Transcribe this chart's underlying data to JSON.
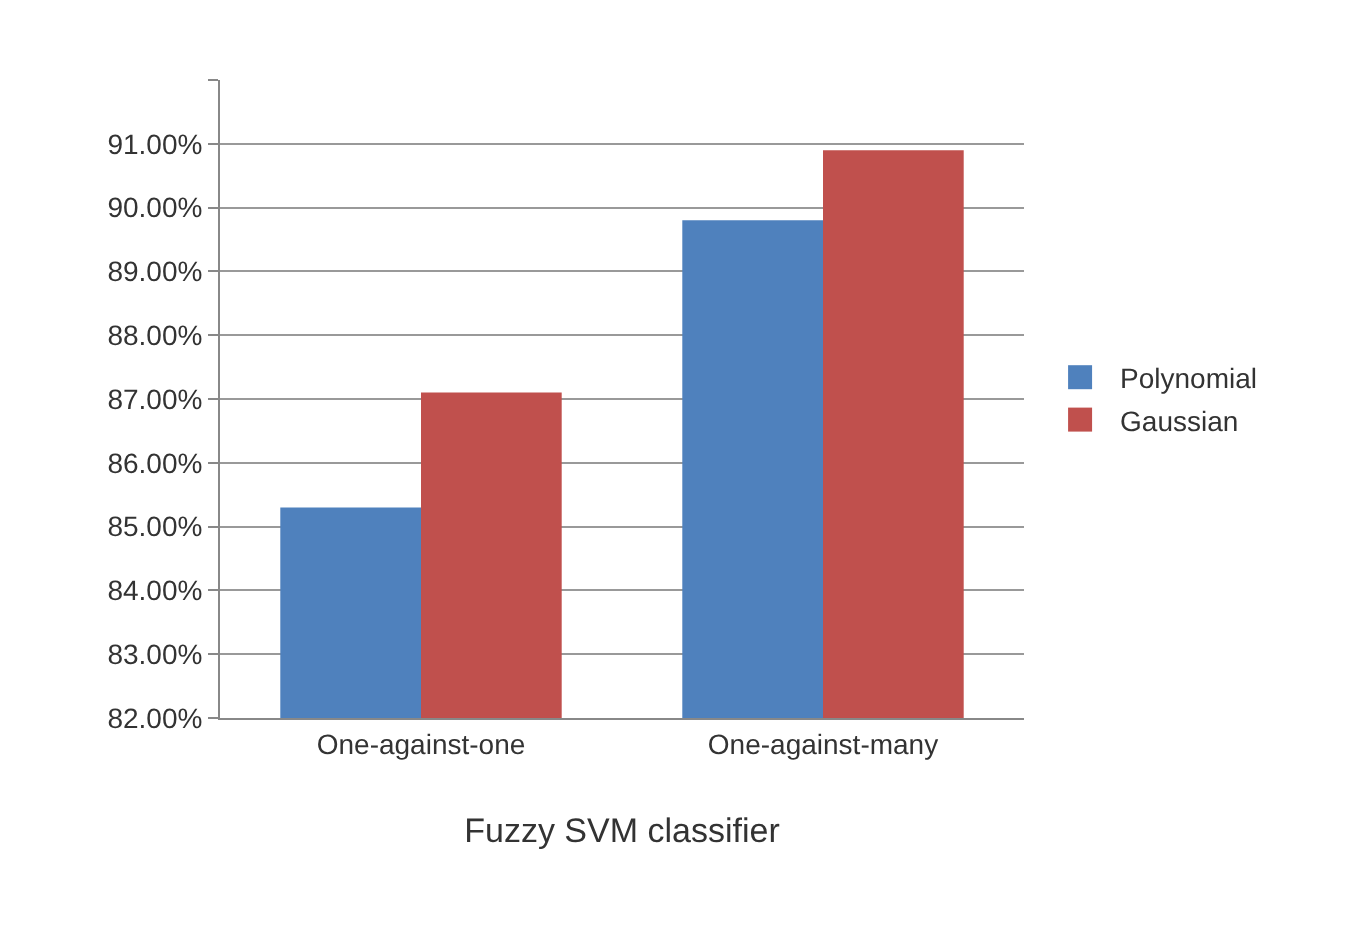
{
  "chart_data": {
    "type": "bar",
    "categories": [
      "One-against-one",
      "One-against-many"
    ],
    "xlabel": "Fuzzy SVM classifier",
    "series": [
      {
        "name": "Polynomial",
        "color": "#4f81bd",
        "values": [
          85.3,
          89.8
        ]
      },
      {
        "name": "Gaussian",
        "color": "#c0504d",
        "values": [
          87.1,
          90.9
        ]
      }
    ],
    "ylim": [
      82,
      92
    ],
    "yticks": [
      {
        "value": 82,
        "label": "82.00%"
      },
      {
        "value": 83,
        "label": "83.00%"
      },
      {
        "value": 84,
        "label": "84.00%"
      },
      {
        "value": 85,
        "label": "85.00%"
      },
      {
        "value": 86,
        "label": "86.00%"
      },
      {
        "value": 87,
        "label": "87.00%"
      },
      {
        "value": 88,
        "label": "88.00%"
      },
      {
        "value": 89,
        "label": "89.00%"
      },
      {
        "value": 90,
        "label": "90.00%"
      },
      {
        "value": 91,
        "label": "91.00%"
      },
      {
        "value": 92,
        "label": null
      }
    ],
    "grid": "y",
    "legend": "right"
  }
}
